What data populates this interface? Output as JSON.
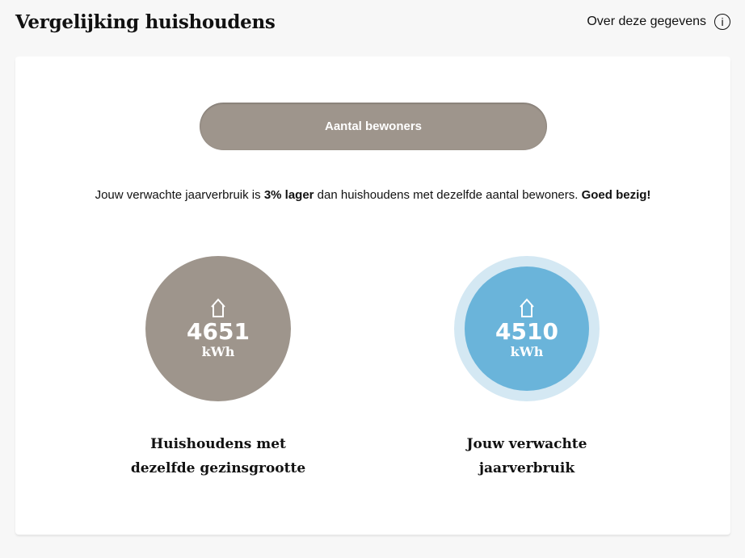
{
  "header": {
    "title": "Vergelijking huishoudens",
    "about_label": "Over deze gegevens",
    "about_icon": "info-icon",
    "about_icon_glyph": "i"
  },
  "toggle": {
    "label": "Aantal bewoners"
  },
  "message": {
    "pre": "Jouw verwachte jaarverbruik is ",
    "bold1": "3% lager",
    "mid": " dan huishoudens met dezelfde aantal bewoners. ",
    "bold2": "Goed bezig!"
  },
  "comparison": [
    {
      "value": "4651",
      "unit": "kWh",
      "caption_line1": "Huishoudens met",
      "caption_line2": "dezelfde gezinsgrootte",
      "color": "#9e958c",
      "icon": "house-icon"
    },
    {
      "value": "4510",
      "unit": "kWh",
      "caption_line1": "Jouw verwachte",
      "caption_line2": "jaarverbruik",
      "color": "#6ab4da",
      "ring_color": "#d4e8f3",
      "icon": "house-icon"
    }
  ]
}
